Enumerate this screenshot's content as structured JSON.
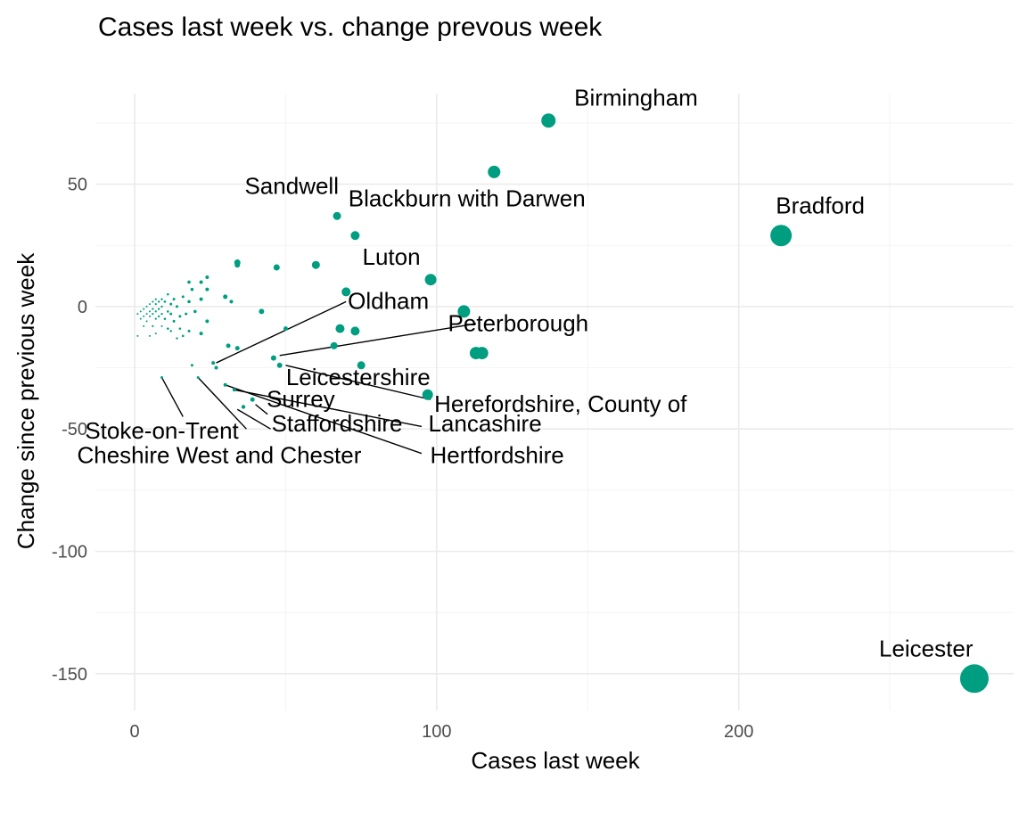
{
  "chart_data": {
    "type": "scatter",
    "title": "Cases last week vs. change prevous week",
    "xlabel": "Cases last week",
    "ylabel": "Change since previous week",
    "xlim": [
      -13,
      291
    ],
    "ylim": [
      -165,
      87
    ],
    "x_ticks": [
      0,
      100,
      200
    ],
    "x_tick_labels": [
      "0",
      "100",
      "200"
    ],
    "y_ticks": [
      -150,
      -100,
      -50,
      0,
      50
    ],
    "y_tick_labels": [
      "-150",
      "-100",
      "-50",
      "0",
      "50"
    ],
    "grid": true,
    "legend": "none",
    "point_color": "#009E80",
    "labeled_points": [
      {
        "label": "Birmingham",
        "x": 137,
        "y": 76,
        "lx": 166,
        "ly": 82,
        "anchor": "middle",
        "leader": false
      },
      {
        "label": "Bradford",
        "x": 214,
        "y": 29,
        "lx": 227,
        "ly": 38,
        "anchor": "middle",
        "leader": false
      },
      {
        "label": "Leicester",
        "x": 278,
        "y": -152,
        "lx": 262,
        "ly": -143,
        "anchor": "middle",
        "leader": false
      },
      {
        "label": "Sandwell",
        "x": 67,
        "y": 37,
        "lx": 52,
        "ly": 46,
        "anchor": "middle",
        "leader": false
      },
      {
        "label": "Blackburn with Darwen",
        "x": 73,
        "y": 29,
        "lx": 110,
        "ly": 41,
        "anchor": "middle",
        "leader": false
      },
      {
        "label": "Luton",
        "x": 98,
        "y": 11,
        "lx": 85,
        "ly": 17,
        "anchor": "middle",
        "leader": false
      },
      {
        "label": "Oldham",
        "x": 70,
        "y": 6,
        "lx": 84,
        "ly": -1,
        "anchor": "middle",
        "leader": true,
        "lead_x": 27,
        "lead_y": -23,
        "line_x": 70,
        "line_y": 2
      },
      {
        "label": "Peterborough",
        "x": 109,
        "y": -2,
        "lx": 127,
        "ly": -10,
        "anchor": "middle",
        "leader": true,
        "lead_x": 48,
        "lead_y": -20,
        "line_x": 113,
        "line_y": -7
      },
      {
        "label": "Leicestershire",
        "x": 75,
        "y": -24,
        "lx": 74,
        "ly": -32,
        "anchor": "middle",
        "leader": false
      },
      {
        "label": "Herefordshire, County of",
        "x": 97,
        "y": -36,
        "lx": 141,
        "ly": -43,
        "anchor": "middle",
        "leader": true,
        "lead_x": 50,
        "lead_y": -24,
        "line_x": 98,
        "line_y": -38
      },
      {
        "label": "Surrey",
        "x": 39,
        "y": -38,
        "lx": 55,
        "ly": -41,
        "anchor": "middle",
        "leader": true,
        "lead_x": 40,
        "lead_y": -40,
        "line_x": 44,
        "line_y": -44
      },
      {
        "label": "Staffordshire",
        "x": 36,
        "y": -41,
        "lx": 67,
        "ly": -51,
        "anchor": "middle",
        "leader": true,
        "lead_x": 34,
        "lead_y": -42,
        "line_x": 45,
        "line_y": -50
      },
      {
        "label": "Lancashire",
        "x": 33,
        "y": -34,
        "lx": 116,
        "ly": -51,
        "anchor": "middle",
        "leader": true,
        "lead_x": 33,
        "lead_y": -34,
        "line_x": 95,
        "line_y": -49
      },
      {
        "label": "Hertfordshire",
        "x": 30,
        "y": -32,
        "lx": 120,
        "ly": -64,
        "anchor": "middle",
        "leader": true,
        "lead_x": 30,
        "lead_y": -32,
        "line_x": 95,
        "line_y": -60
      },
      {
        "label": "Stoke-on-Trent",
        "x": 9,
        "y": -29,
        "lx": 9,
        "ly": -54,
        "anchor": "middle",
        "leader": true,
        "lead_x": 9,
        "lead_y": -29,
        "line_x": 16,
        "line_y": -45
      },
      {
        "label": "Cheshire West and Chester",
        "x": 21,
        "y": -29,
        "lx": 28,
        "ly": -64,
        "anchor": "middle",
        "leader": true,
        "lead_x": 21,
        "lead_y": -29,
        "line_x": 37,
        "line_y": -50
      }
    ],
    "points": [
      {
        "x": 137,
        "y": 76,
        "r": 8
      },
      {
        "x": 119,
        "y": 55,
        "r": 7
      },
      {
        "x": 214,
        "y": 29,
        "r": 12
      },
      {
        "x": 278,
        "y": -152,
        "r": 16
      },
      {
        "x": 67,
        "y": 37,
        "r": 4.5
      },
      {
        "x": 73,
        "y": 29,
        "r": 5
      },
      {
        "x": 98,
        "y": 11,
        "r": 6.5
      },
      {
        "x": 70,
        "y": 6,
        "r": 5
      },
      {
        "x": 109,
        "y": -2,
        "r": 7
      },
      {
        "x": 113,
        "y": -19,
        "r": 7
      },
      {
        "x": 115,
        "y": -19,
        "r": 7
      },
      {
        "x": 97,
        "y": -36,
        "r": 6
      },
      {
        "x": 75,
        "y": -24,
        "r": 4.5
      },
      {
        "x": 68,
        "y": -9,
        "r": 5
      },
      {
        "x": 73,
        "y": -10,
        "r": 5
      },
      {
        "x": 66,
        "y": -16,
        "r": 4
      },
      {
        "x": 60,
        "y": 17,
        "r": 4.5
      },
      {
        "x": 47,
        "y": 16,
        "r": 3.5
      },
      {
        "x": 34,
        "y": 18,
        "r": 3.5
      },
      {
        "x": 34,
        "y": 17,
        "r": 3
      },
      {
        "x": 42,
        "y": -2,
        "r": 3
      },
      {
        "x": 50,
        "y": -9,
        "r": 2.5
      },
      {
        "x": 46,
        "y": -21,
        "r": 3
      },
      {
        "x": 48,
        "y": -24,
        "r": 3
      },
      {
        "x": 31,
        "y": -16,
        "r": 2.5
      },
      {
        "x": 34,
        "y": -17,
        "r": 2.5
      },
      {
        "x": 30,
        "y": 4,
        "r": 2.5
      },
      {
        "x": 32,
        "y": 2,
        "r": 2
      },
      {
        "x": 24,
        "y": 12,
        "r": 2
      },
      {
        "x": 24,
        "y": 7,
        "r": 2
      },
      {
        "x": 24,
        "y": -6,
        "r": 2
      },
      {
        "x": 22,
        "y": 10,
        "r": 2
      },
      {
        "x": 22,
        "y": 3,
        "r": 2
      },
      {
        "x": 22,
        "y": -11,
        "r": 2
      },
      {
        "x": 20,
        "y": -2,
        "r": 1.8
      },
      {
        "x": 19,
        "y": 7,
        "r": 1.8
      },
      {
        "x": 18,
        "y": 10,
        "r": 1.8
      },
      {
        "x": 18,
        "y": 2,
        "r": 1.8
      },
      {
        "x": 17,
        "y": -3,
        "r": 1.5
      },
      {
        "x": 16,
        "y": 4,
        "r": 1.5
      },
      {
        "x": 15,
        "y": -4,
        "r": 1.5
      },
      {
        "x": 14,
        "y": 0,
        "r": 1.5
      },
      {
        "x": 13,
        "y": 3,
        "r": 1.5
      },
      {
        "x": 13,
        "y": -6,
        "r": 1.5
      },
      {
        "x": 12,
        "y": 1,
        "r": 1.5
      },
      {
        "x": 12,
        "y": -3,
        "r": 1.5
      },
      {
        "x": 11,
        "y": 5,
        "r": 1.3
      },
      {
        "x": 11,
        "y": -2,
        "r": 1.3
      },
      {
        "x": 11,
        "y": -9,
        "r": 1.3
      },
      {
        "x": 10,
        "y": 2,
        "r": 1.3
      },
      {
        "x": 10,
        "y": -5,
        "r": 1.3
      },
      {
        "x": 9,
        "y": 3,
        "r": 1.2
      },
      {
        "x": 9,
        "y": 0,
        "r": 1.2
      },
      {
        "x": 9,
        "y": -3,
        "r": 1.2
      },
      {
        "x": 8,
        "y": 2,
        "r": 1.2
      },
      {
        "x": 8,
        "y": -1,
        "r": 1.2
      },
      {
        "x": 8,
        "y": -4,
        "r": 1.2
      },
      {
        "x": 7,
        "y": 3,
        "r": 1.1
      },
      {
        "x": 7,
        "y": 1,
        "r": 1.1
      },
      {
        "x": 7,
        "y": -2,
        "r": 1.1
      },
      {
        "x": 7,
        "y": -5,
        "r": 1.1
      },
      {
        "x": 6,
        "y": 2,
        "r": 1.1
      },
      {
        "x": 6,
        "y": -1,
        "r": 1.1
      },
      {
        "x": 6,
        "y": -3,
        "r": 1.1
      },
      {
        "x": 6,
        "y": -8,
        "r": 1.1
      },
      {
        "x": 5,
        "y": 1,
        "r": 1
      },
      {
        "x": 5,
        "y": -2,
        "r": 1
      },
      {
        "x": 5,
        "y": -4,
        "r": 1
      },
      {
        "x": 4,
        "y": 0,
        "r": 1
      },
      {
        "x": 4,
        "y": -3,
        "r": 1
      },
      {
        "x": 4,
        "y": -6,
        "r": 1
      },
      {
        "x": 3,
        "y": -1,
        "r": 1
      },
      {
        "x": 3,
        "y": -4,
        "r": 1
      },
      {
        "x": 2,
        "y": -2,
        "r": 1
      },
      {
        "x": 2,
        "y": -5,
        "r": 1
      },
      {
        "x": 1,
        "y": -3,
        "r": 1
      },
      {
        "x": 1,
        "y": -12,
        "r": 1
      },
      {
        "x": 3,
        "y": -8,
        "r": 1
      },
      {
        "x": 5,
        "y": -12,
        "r": 1
      },
      {
        "x": 7,
        "y": -11,
        "r": 1
      },
      {
        "x": 9,
        "y": -8,
        "r": 1
      },
      {
        "x": 14,
        "y": -13,
        "r": 1.2
      },
      {
        "x": 12,
        "y": -10,
        "r": 1.2
      },
      {
        "x": 15,
        "y": -9,
        "r": 1.3
      },
      {
        "x": 16,
        "y": -12,
        "r": 1.3
      },
      {
        "x": 18,
        "y": -10,
        "r": 1.5
      },
      {
        "x": 19,
        "y": -24,
        "r": 1.5
      },
      {
        "x": 21,
        "y": -29,
        "r": 1.5
      },
      {
        "x": 9,
        "y": -29,
        "r": 1.5
      },
      {
        "x": 30,
        "y": -32,
        "r": 2
      },
      {
        "x": 33,
        "y": -34,
        "r": 2
      },
      {
        "x": 36,
        "y": -41,
        "r": 2.2
      },
      {
        "x": 39,
        "y": -38,
        "r": 2.5
      },
      {
        "x": 26,
        "y": -23,
        "r": 2
      },
      {
        "x": 27,
        "y": -25,
        "r": 2
      }
    ]
  }
}
